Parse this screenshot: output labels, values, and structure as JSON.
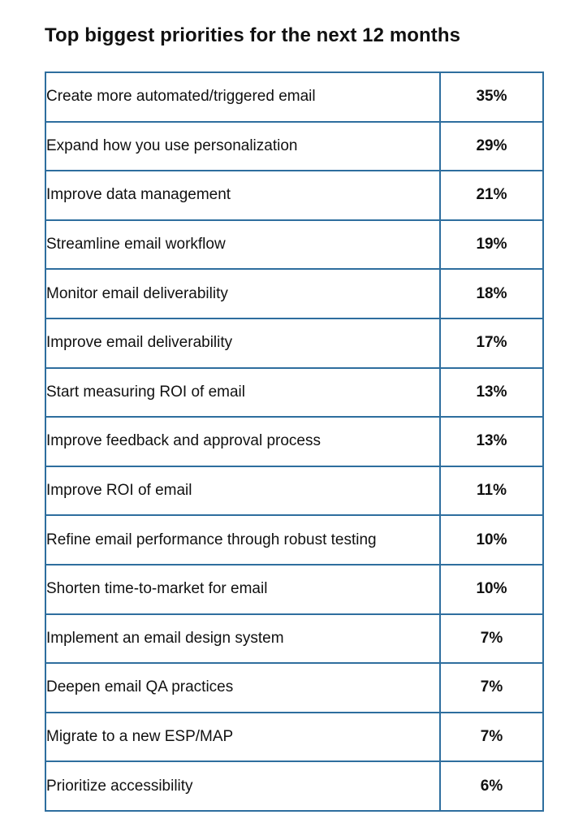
{
  "title": "Top biggest priorities for the next 12 months",
  "colors": {
    "border": "#2e6e9e",
    "text": "#111111",
    "background": "#ffffff"
  },
  "rows": [
    {
      "label": "Create more automated/triggered email",
      "value": "35%"
    },
    {
      "label": "Expand how you use personalization",
      "value": "29%"
    },
    {
      "label": "Improve data management",
      "value": "21%"
    },
    {
      "label": "Streamline email workflow",
      "value": "19%"
    },
    {
      "label": "Monitor email deliverability",
      "value": "18%"
    },
    {
      "label": "Improve email deliverability",
      "value": "17%"
    },
    {
      "label": "Start measuring ROI of email",
      "value": "13%"
    },
    {
      "label": "Improve feedback and approval process",
      "value": "13%"
    },
    {
      "label": "Improve ROI of email",
      "value": "11%"
    },
    {
      "label": "Refine email performance through robust testing",
      "value": "10%"
    },
    {
      "label": "Shorten time-to-market for email",
      "value": "10%"
    },
    {
      "label": "Implement an email design system",
      "value": "7%"
    },
    {
      "label": "Deepen email QA practices",
      "value": "7%"
    },
    {
      "label": "Migrate to a new ESP/MAP",
      "value": "7%"
    },
    {
      "label": "Prioritize accessibility",
      "value": "6%"
    }
  ]
}
